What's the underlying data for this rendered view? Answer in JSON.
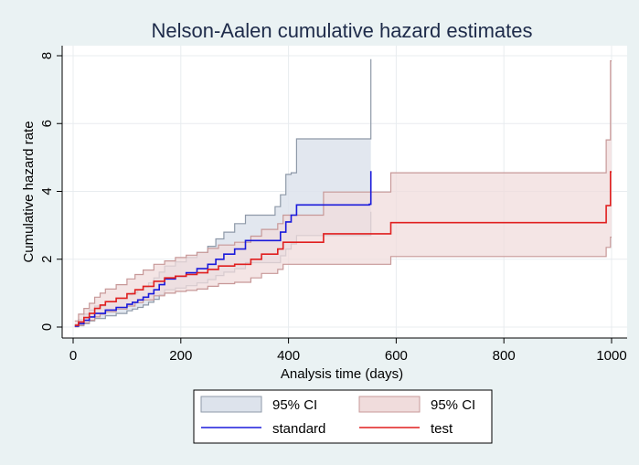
{
  "chart_data": {
    "type": "line",
    "title": "Nelson-Aalen cumulative hazard estimates",
    "xlabel": "Analysis time (days)",
    "ylabel": "Cumulative hazard rate",
    "xlim": [
      0,
      1000
    ],
    "ylim": [
      0,
      8
    ],
    "xticks": [
      "0",
      "200",
      "400",
      "600",
      "800",
      "1000"
    ],
    "yticks": [
      "0",
      "2",
      "4",
      "6",
      "8"
    ],
    "grid": true,
    "legend_position": "bottom",
    "legend": [
      "95% CI",
      "95% CI",
      "standard",
      "test"
    ],
    "colors": {
      "standard_line": "#1a1adb",
      "standard_ci_fill": "#dde3ec",
      "standard_ci_edge": "#8e99a8",
      "test_line": "#e01f1f",
      "test_ci_fill": "#f0dcdc",
      "test_ci_edge": "#c79898"
    },
    "series": [
      {
        "name": "standard",
        "x": [
          3,
          10,
          20,
          30,
          40,
          60,
          80,
          100,
          110,
          120,
          130,
          140,
          150,
          160,
          170,
          190,
          210,
          230,
          250,
          265,
          280,
          300,
          320,
          340,
          360,
          375,
          385,
          395,
          405,
          415,
          430,
          460,
          500,
          530,
          550,
          553
        ],
        "y": [
          0.03,
          0.1,
          0.2,
          0.3,
          0.4,
          0.5,
          0.58,
          0.67,
          0.73,
          0.8,
          0.88,
          0.98,
          1.1,
          1.25,
          1.42,
          1.5,
          1.6,
          1.72,
          1.85,
          2.0,
          2.15,
          2.3,
          2.55,
          2.55,
          2.55,
          2.55,
          2.8,
          3.1,
          3.3,
          3.6,
          3.6,
          3.6,
          3.6,
          3.6,
          3.62,
          4.6
        ],
        "ci_lower": [
          0.01,
          0.04,
          0.1,
          0.18,
          0.25,
          0.33,
          0.4,
          0.48,
          0.53,
          0.58,
          0.65,
          0.73,
          0.82,
          0.95,
          1.1,
          1.15,
          1.22,
          1.3,
          1.4,
          1.52,
          1.62,
          1.72,
          1.9,
          1.9,
          1.9,
          1.9,
          2.1,
          2.3,
          2.45,
          2.7,
          2.7,
          2.7,
          2.7,
          2.7,
          2.7,
          3.4
        ],
        "ci_upper": [
          0.08,
          0.22,
          0.38,
          0.5,
          0.62,
          0.75,
          0.85,
          0.95,
          1.02,
          1.1,
          1.18,
          1.3,
          1.45,
          1.62,
          1.8,
          1.92,
          2.05,
          2.2,
          2.38,
          2.6,
          2.8,
          3.05,
          3.3,
          3.3,
          3.3,
          3.55,
          3.9,
          4.5,
          4.55,
          5.55,
          5.55,
          5.55,
          5.55,
          5.55,
          5.55,
          7.9
        ]
      },
      {
        "name": "test",
        "x": [
          3,
          10,
          20,
          30,
          40,
          50,
          60,
          80,
          100,
          115,
          130,
          150,
          170,
          190,
          210,
          230,
          250,
          270,
          300,
          330,
          350,
          380,
          390,
          420,
          465,
          500,
          550,
          590,
          650,
          800,
          900,
          990,
          995,
          998,
          1000
        ],
        "y": [
          0.05,
          0.15,
          0.28,
          0.4,
          0.55,
          0.65,
          0.75,
          0.85,
          0.98,
          1.1,
          1.2,
          1.35,
          1.45,
          1.5,
          1.55,
          1.6,
          1.7,
          1.8,
          1.85,
          2.0,
          2.15,
          2.3,
          2.5,
          2.5,
          2.75,
          2.75,
          2.75,
          3.08,
          3.08,
          3.08,
          3.08,
          3.58,
          3.58,
          4.58,
          4.58
        ],
        "ci_lower": [
          0.01,
          0.05,
          0.12,
          0.2,
          0.3,
          0.38,
          0.45,
          0.53,
          0.62,
          0.72,
          0.8,
          0.92,
          1.0,
          1.05,
          1.08,
          1.12,
          1.2,
          1.28,
          1.32,
          1.45,
          1.58,
          1.7,
          1.85,
          1.85,
          1.85,
          1.85,
          1.85,
          2.08,
          2.08,
          2.08,
          2.08,
          2.35,
          2.35,
          2.65,
          2.65
        ],
        "ci_upper": [
          0.18,
          0.38,
          0.55,
          0.7,
          0.88,
          1.0,
          1.12,
          1.25,
          1.42,
          1.55,
          1.68,
          1.85,
          1.95,
          2.05,
          2.12,
          2.2,
          2.32,
          2.42,
          2.5,
          2.68,
          2.88,
          3.05,
          3.3,
          3.3,
          3.98,
          3.98,
          3.98,
          4.55,
          4.55,
          4.55,
          4.55,
          5.52,
          5.52,
          7.85,
          7.85
        ]
      }
    ]
  }
}
